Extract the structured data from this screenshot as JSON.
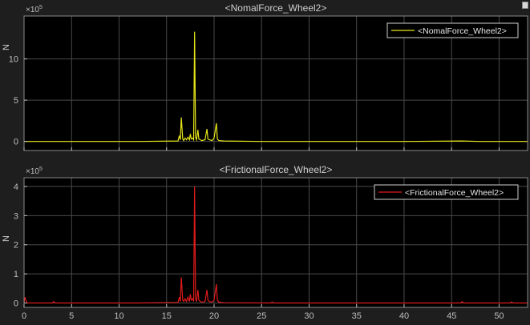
{
  "theme": {
    "background": "#1e1e1e",
    "axes_background": "#000000",
    "grid_color": "#4a4a4a",
    "text_color": "#cfcfcf",
    "tick_color": "#bdbdbd"
  },
  "chart_data": [
    {
      "type": "line",
      "title": "<NomalForce_Wheel2>",
      "xlabel": "",
      "ylabel": "N",
      "exponent_label": "×10",
      "exponent_power": "5",
      "xlim": [
        0,
        53
      ],
      "ylim": [
        -1.1,
        15.2
      ],
      "xticks": [
        0,
        5,
        10,
        15,
        20,
        25,
        30,
        35,
        40,
        45,
        50
      ],
      "xtick_labels": [
        "0",
        "5",
        "10",
        "15",
        "20",
        "25",
        "30",
        "35",
        "40",
        "45",
        "50"
      ],
      "yticks": [
        0,
        5,
        10
      ],
      "ytick_labels": [
        "0",
        "5",
        "10"
      ],
      "grid": true,
      "legend_position": "top-right",
      "series": [
        {
          "name": "<NomalForce_Wheel2>",
          "color": "#e6e619",
          "x": [
            0,
            6,
            12,
            16.2,
            16.35,
            16.45,
            16.55,
            16.7,
            16.8,
            16.95,
            17.1,
            17.25,
            17.4,
            17.5,
            17.6,
            17.75,
            17.85,
            17.95,
            18.05,
            18.15,
            18.3,
            18.4,
            18.55,
            18.7,
            19.05,
            19.25,
            19.35,
            19.5,
            19.8,
            20.0,
            20.25,
            20.35,
            20.5,
            21,
            25,
            30,
            35,
            40,
            46,
            48,
            53
          ],
          "y": [
            0,
            0,
            0,
            0.05,
            0.7,
            0.2,
            2.9,
            0.3,
            0.1,
            0.4,
            0.2,
            0.5,
            0.2,
            0.9,
            0.3,
            0.4,
            0.2,
            13.3,
            0.5,
            0.2,
            1.4,
            0.3,
            0.2,
            0.1,
            0.2,
            1.5,
            0.3,
            0.2,
            0.1,
            0.4,
            2.2,
            0.3,
            0.1,
            0.05,
            0,
            0,
            0,
            0,
            0.05,
            0,
            0
          ]
        }
      ]
    },
    {
      "type": "line",
      "title": "<FrictionalForce_Wheel2>",
      "xlabel": "",
      "ylabel": "N",
      "exponent_label": "×10",
      "exponent_power": "5",
      "xlim": [
        0,
        53
      ],
      "ylim": [
        -0.15,
        4.3
      ],
      "xticks": [
        0,
        5,
        10,
        15,
        20,
        25,
        30,
        35,
        40,
        45,
        50
      ],
      "xtick_labels": [
        "0",
        "5",
        "10",
        "15",
        "20",
        "25",
        "30",
        "35",
        "40",
        "45",
        "50"
      ],
      "yticks": [
        0,
        1,
        2,
        3,
        4
      ],
      "ytick_labels": [
        "0",
        "1",
        "2",
        "3",
        "4"
      ],
      "grid": true,
      "legend_position": "top-right",
      "series": [
        {
          "name": "<FrictionalForce_Wheel2>",
          "color": "#e01b1b",
          "x": [
            0,
            0.1,
            0.3,
            3,
            3.1,
            3.3,
            8,
            12,
            16.2,
            16.35,
            16.45,
            16.55,
            16.7,
            16.8,
            16.95,
            17.1,
            17.25,
            17.4,
            17.5,
            17.6,
            17.75,
            17.85,
            17.95,
            18.05,
            18.15,
            18.3,
            18.4,
            18.55,
            18.7,
            19.05,
            19.25,
            19.35,
            19.5,
            19.8,
            20.0,
            20.25,
            20.35,
            20.5,
            21,
            26,
            26.1,
            26.3,
            30,
            35,
            40,
            46.0,
            46.1,
            46.3,
            51.2,
            51.3,
            51.5,
            53
          ],
          "y": [
            0,
            0.2,
            0,
            0,
            0.05,
            0,
            0,
            0,
            0.02,
            0.2,
            0.05,
            0.88,
            0.1,
            0.05,
            0.15,
            0.05,
            0.2,
            0.05,
            0.3,
            0.1,
            0.15,
            0.05,
            4.0,
            0.15,
            0.05,
            0.45,
            0.1,
            0.05,
            0.03,
            0.05,
            0.45,
            0.1,
            0.05,
            0.03,
            0.1,
            0.65,
            0.1,
            0.03,
            0.01,
            0,
            0.03,
            0,
            0,
            0,
            0,
            0,
            0.05,
            0,
            0,
            0.04,
            0,
            0
          ]
        }
      ]
    }
  ]
}
